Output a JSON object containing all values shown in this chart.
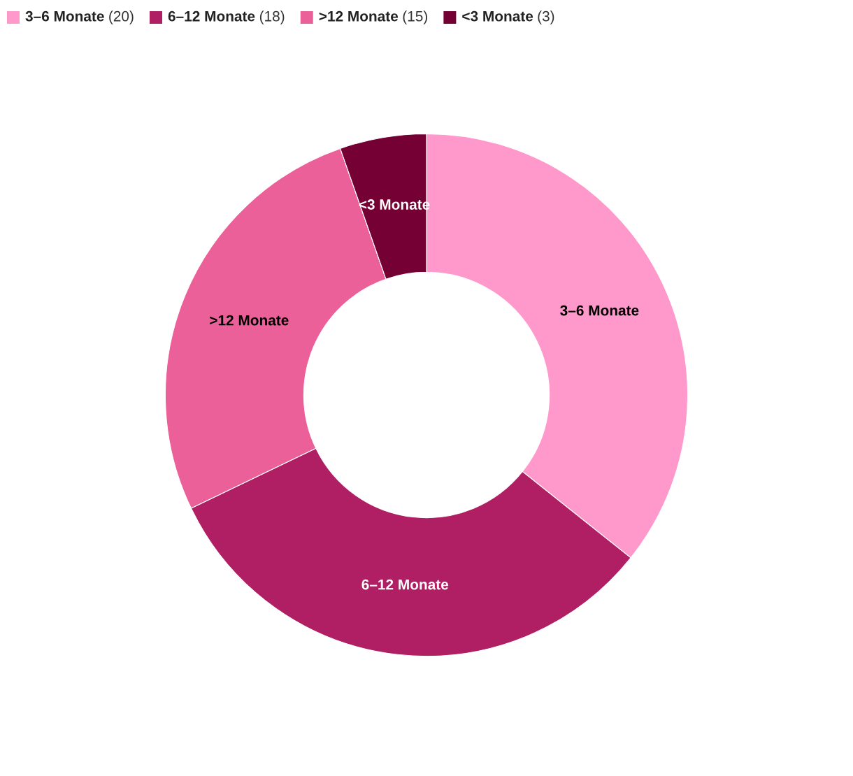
{
  "chart_data": {
    "type": "donut",
    "categories": [
      "3–6 Monate",
      "6–12 Monate",
      ">12 Monate",
      "<3 Monate"
    ],
    "values": [
      20,
      18,
      15,
      3
    ],
    "colors": [
      "#ff99cc",
      "#b01f64",
      "#eb6098",
      "#750033"
    ],
    "value_labels": [
      "(20)",
      "(18)",
      "(15)",
      "(3)"
    ],
    "legend": "top left"
  }
}
